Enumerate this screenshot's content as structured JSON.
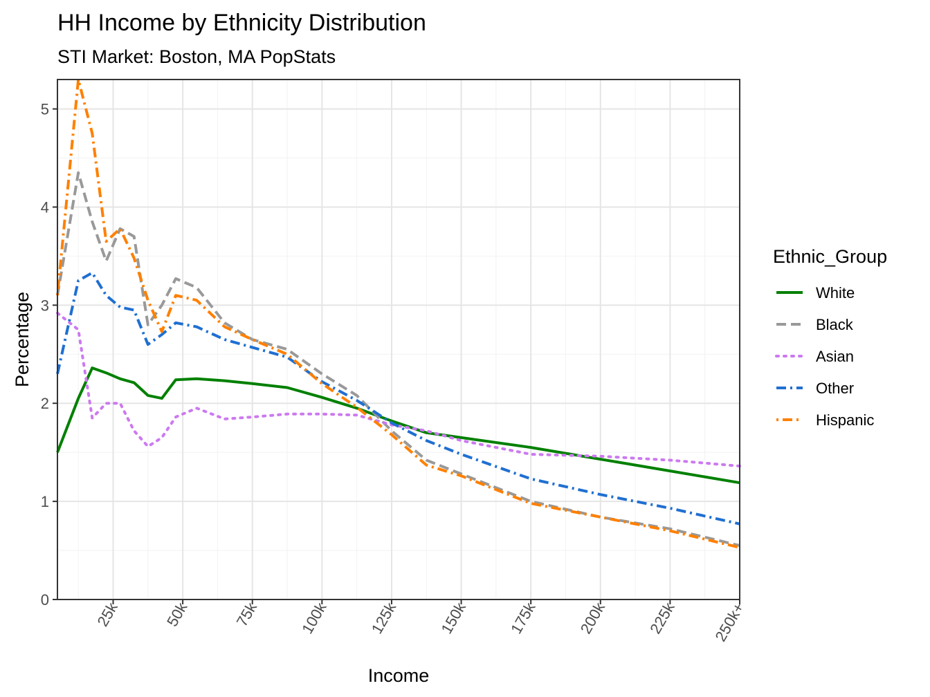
{
  "chart_data": {
    "type": "line",
    "title": "HH Income by Ethnicity Distribution",
    "subtitle": "STI Market: Boston, MA PopStats",
    "xlabel": "Income",
    "ylabel": "Percentage",
    "xlim": [
      5,
      250
    ],
    "ylim": [
      0,
      5.3
    ],
    "x_ticks": [
      25,
      50,
      75,
      100,
      125,
      150,
      175,
      200,
      225,
      250
    ],
    "x_tick_labels": [
      "25k",
      "50k",
      "75k",
      "100k",
      "125k",
      "150k",
      "175k",
      "200k",
      "225k",
      "250k+"
    ],
    "y_ticks": [
      0,
      1,
      2,
      3,
      4,
      5
    ],
    "y_tick_labels": [
      "0",
      "1",
      "2",
      "3",
      "4",
      "5"
    ],
    "grid": true,
    "legend_title": "Ethnic_Group",
    "legend_position": "right",
    "x": [
      5,
      12.5,
      17.5,
      22.5,
      27.5,
      32.5,
      37.5,
      42.5,
      47.5,
      55,
      65,
      75,
      87.5,
      100,
      112.5,
      125,
      137.5,
      150,
      175,
      200,
      225,
      250
    ],
    "series": [
      {
        "name": "White",
        "color": "#008000",
        "dash": "solid",
        "values": [
          1.5,
          2.05,
          2.36,
          2.31,
          2.25,
          2.21,
          2.08,
          2.05,
          2.24,
          2.25,
          2.23,
          2.2,
          2.16,
          2.06,
          1.95,
          1.82,
          1.7,
          1.65,
          1.55,
          1.43,
          1.31,
          1.19
        ]
      },
      {
        "name": "Black",
        "color": "#999999",
        "dash": "dashed",
        "values": [
          3.1,
          4.35,
          3.85,
          3.45,
          3.78,
          3.7,
          2.8,
          3.0,
          3.27,
          3.18,
          2.82,
          2.65,
          2.55,
          2.3,
          2.08,
          1.72,
          1.42,
          1.28,
          1.0,
          0.84,
          0.72,
          0.55
        ]
      },
      {
        "name": "Asian",
        "color": "#cc79f0",
        "dash": "dotted",
        "values": [
          2.92,
          2.75,
          1.85,
          2.0,
          2.0,
          1.72,
          1.56,
          1.65,
          1.86,
          1.95,
          1.84,
          1.86,
          1.89,
          1.89,
          1.88,
          1.78,
          1.72,
          1.62,
          1.48,
          1.46,
          1.42,
          1.36
        ]
      },
      {
        "name": "Other",
        "color": "#1f6fd1",
        "dash": "dashdot",
        "values": [
          2.3,
          3.25,
          3.33,
          3.1,
          2.98,
          2.95,
          2.6,
          2.7,
          2.82,
          2.78,
          2.65,
          2.57,
          2.47,
          2.22,
          2.03,
          1.8,
          1.62,
          1.48,
          1.23,
          1.07,
          0.93,
          0.77
        ]
      },
      {
        "name": "Hispanic",
        "color": "#ff8000",
        "dash": "dotdash",
        "values": [
          3.1,
          5.3,
          4.75,
          3.65,
          3.78,
          3.48,
          3.05,
          2.73,
          3.1,
          3.05,
          2.78,
          2.65,
          2.5,
          2.2,
          1.96,
          1.68,
          1.37,
          1.26,
          0.98,
          0.84,
          0.7,
          0.53
        ]
      }
    ]
  }
}
